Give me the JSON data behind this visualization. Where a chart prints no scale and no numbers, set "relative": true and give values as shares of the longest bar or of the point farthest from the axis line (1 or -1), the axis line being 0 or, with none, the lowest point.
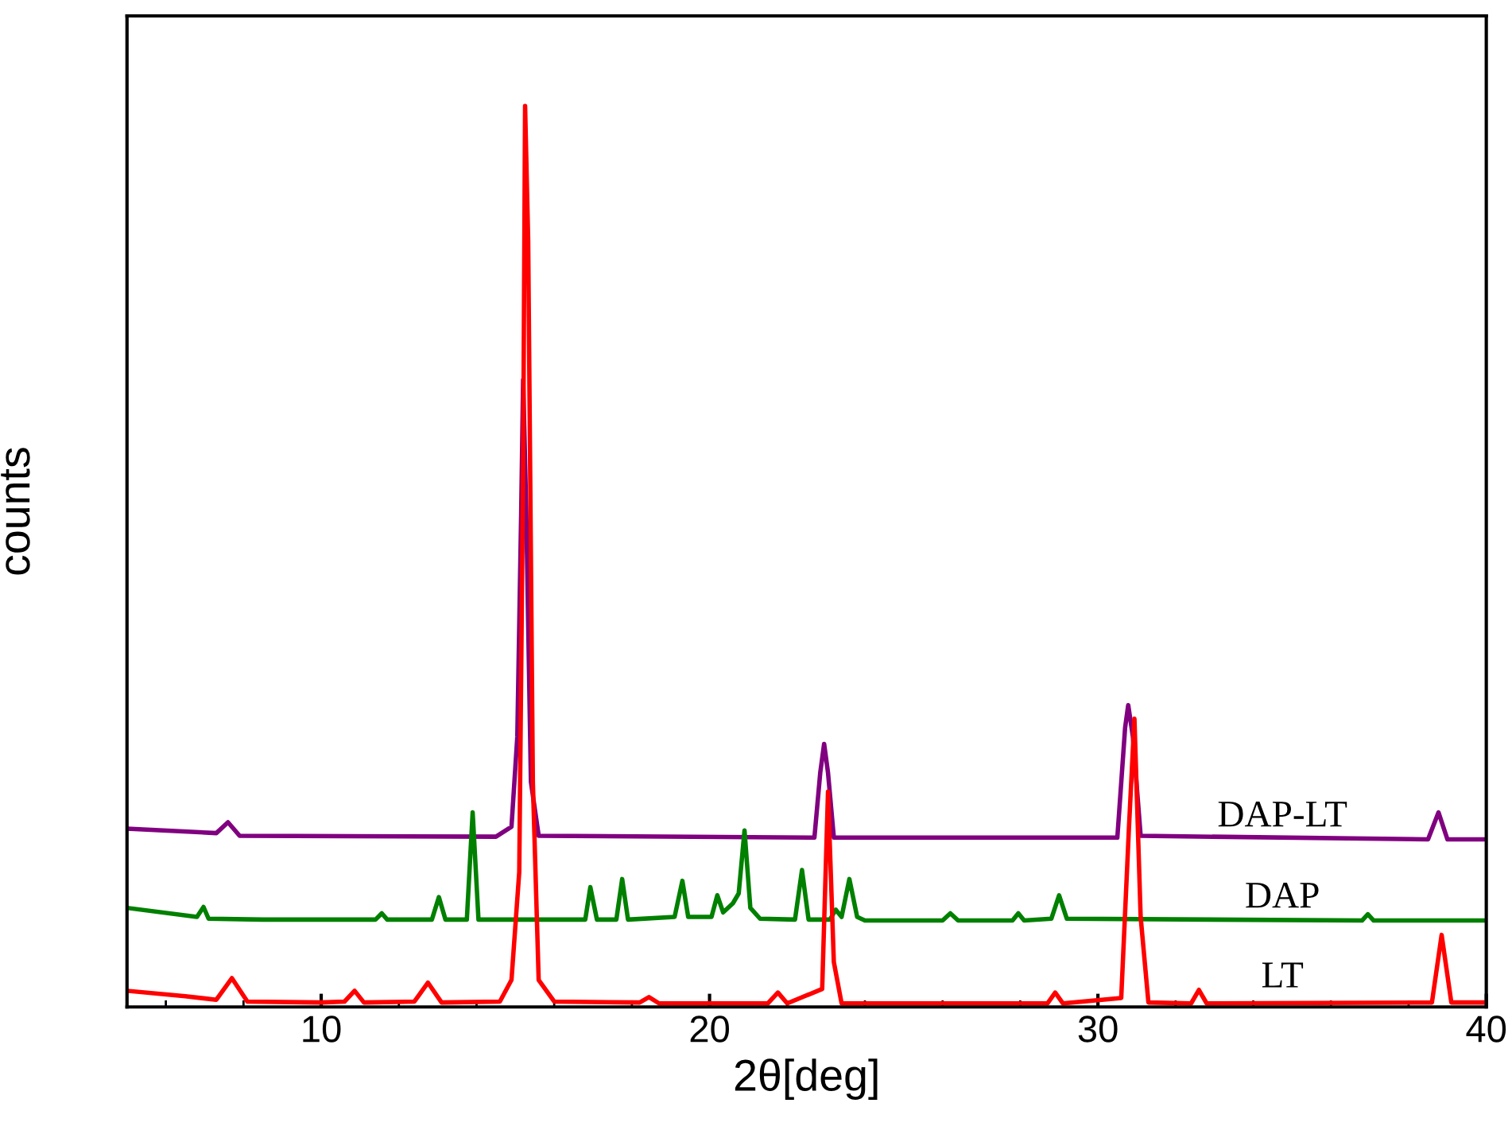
{
  "chart_data": {
    "type": "line",
    "relative": true,
    "xlabel": "2θ[deg]",
    "ylabel": "counts",
    "xlim": [
      5,
      40
    ],
    "xticks": [
      {
        "value": 6,
        "label": null
      },
      {
        "value": 8,
        "label": null
      },
      10,
      {
        "value": 12,
        "label": null
      },
      {
        "value": 14,
        "label": null
      },
      {
        "value": 16,
        "label": null
      },
      {
        "value": 18,
        "label": null
      },
      20,
      {
        "value": 22,
        "label": null
      },
      {
        "value": 24,
        "label": null
      },
      {
        "value": 26,
        "label": null
      },
      {
        "value": 28,
        "label": null
      },
      30,
      {
        "value": 32,
        "label": null
      },
      {
        "value": 34,
        "label": null
      },
      {
        "value": 36,
        "label": null
      },
      {
        "value": 38,
        "label": null
      },
      40
    ],
    "grid": false,
    "marker": "none",
    "line_style": "solid",
    "tick_labels": "x",
    "series": [
      {
        "name": "DAP-LT",
        "color": "#800080",
        "x": [
          5.0,
          7.3,
          7.6,
          7.9,
          14.5,
          14.9,
          15.05,
          15.15,
          15.2,
          15.28,
          15.4,
          15.6,
          22.7,
          22.85,
          22.95,
          23.05,
          23.2,
          30.5,
          30.7,
          30.78,
          30.9,
          31.1,
          38.5,
          38.77,
          39.0,
          40.0
        ],
        "values": [
          0.198,
          0.193,
          0.205,
          0.19,
          0.189,
          0.2,
          0.3,
          0.55,
          0.696,
          0.55,
          0.25,
          0.19,
          0.188,
          0.26,
          0.292,
          0.26,
          0.188,
          0.188,
          0.31,
          0.335,
          0.3,
          0.19,
          0.186,
          0.216,
          0.186,
          0.186
        ]
      },
      {
        "name": "DAP",
        "color": "#008000",
        "x": [
          5.0,
          6.8,
          6.97,
          7.1,
          8.5,
          11.4,
          11.56,
          11.7,
          12.85,
          13.03,
          13.2,
          13.75,
          13.9,
          14.05,
          16.8,
          16.93,
          17.1,
          17.6,
          17.75,
          17.9,
          19.1,
          19.3,
          19.45,
          20.05,
          20.2,
          20.35,
          20.6,
          20.75,
          20.9,
          21.05,
          21.3,
          22.2,
          22.38,
          22.55,
          23.1,
          23.25,
          23.4,
          23.6,
          23.8,
          24.0,
          26.0,
          26.2,
          26.4,
          27.8,
          27.95,
          28.1,
          28.8,
          29.0,
          29.2,
          36.8,
          36.95,
          37.1,
          40.0
        ],
        "values": [
          0.11,
          0.1,
          0.111,
          0.098,
          0.097,
          0.097,
          0.104,
          0.097,
          0.097,
          0.122,
          0.097,
          0.097,
          0.216,
          0.097,
          0.097,
          0.133,
          0.097,
          0.097,
          0.142,
          0.097,
          0.1,
          0.14,
          0.1,
          0.1,
          0.124,
          0.105,
          0.115,
          0.126,
          0.196,
          0.11,
          0.098,
          0.097,
          0.152,
          0.097,
          0.097,
          0.108,
          0.1,
          0.142,
          0.1,
          0.096,
          0.096,
          0.104,
          0.096,
          0.096,
          0.104,
          0.096,
          0.098,
          0.124,
          0.098,
          0.096,
          0.103,
          0.096,
          0.096
        ]
      },
      {
        "name": "LT",
        "color": "#ff0000",
        "x": [
          5.0,
          6.5,
          7.3,
          7.7,
          8.1,
          10.0,
          10.6,
          10.86,
          11.1,
          12.4,
          12.75,
          13.1,
          14.6,
          14.9,
          15.1,
          15.2,
          15.25,
          15.33,
          15.45,
          15.6,
          16.0,
          18.2,
          18.44,
          18.7,
          21.5,
          21.76,
          22.0,
          22.9,
          23.05,
          23.2,
          23.4,
          28.7,
          28.9,
          29.1,
          30.6,
          30.8,
          30.94,
          31.1,
          31.3,
          32.4,
          32.6,
          32.8,
          38.6,
          38.85,
          39.1,
          40.0
        ],
        "values": [
          0.018,
          0.012,
          0.008,
          0.032,
          0.006,
          0.005,
          0.006,
          0.018,
          0.005,
          0.006,
          0.027,
          0.005,
          0.006,
          0.03,
          0.15,
          0.6,
          1.0,
          0.85,
          0.25,
          0.03,
          0.006,
          0.005,
          0.011,
          0.004,
          0.004,
          0.016,
          0.004,
          0.02,
          0.239,
          0.05,
          0.004,
          0.004,
          0.016,
          0.004,
          0.01,
          0.2,
          0.32,
          0.1,
          0.005,
          0.004,
          0.019,
          0.004,
          0.005,
          0.08,
          0.005,
          0.005
        ]
      }
    ]
  }
}
